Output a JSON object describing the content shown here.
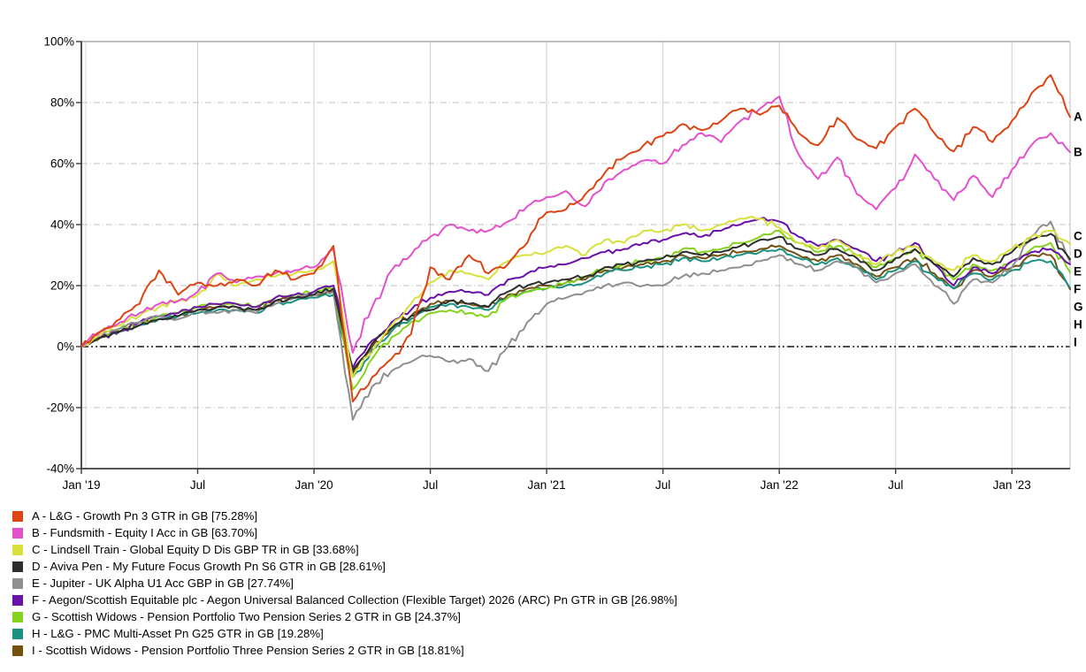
{
  "page": {
    "background": "#ffffff"
  },
  "chart_data": {
    "type": "line",
    "title": "",
    "x_axis": {
      "tick_labels": [
        "Jan '19",
        "Jul",
        "Jan '20",
        "Jul",
        "Jan '21",
        "Jul",
        "Jan '22",
        "Jul",
        "Jan '23"
      ],
      "tick_month_indices": [
        0,
        6,
        12,
        18,
        24,
        30,
        36,
        42,
        48
      ],
      "months_span": 51,
      "start": "Jan 2019",
      "end": "Mar 2023"
    },
    "y_axis": {
      "tick_labels": [
        "100%",
        "80%",
        "60%",
        "40%",
        "20%",
        "0%",
        "-20%",
        "-40%"
      ],
      "tick_values": [
        100,
        80,
        60,
        40,
        20,
        0,
        -20,
        -40
      ],
      "ylim": [
        -40,
        100
      ],
      "unit": "%"
    },
    "zero_line_value": 0,
    "sampling": "monthly cumulative total return since Jan 2019; final point = end of chart (late Mar 2023)",
    "grid": {
      "vertical": "solid light gray at 6-month ticks",
      "horizontal": "dashed light gray each 20%",
      "zero": "black dash-dot"
    },
    "legend_position": "bottom-left",
    "series": [
      {
        "letter": "A",
        "name": "L&G - Growth Pn 3 GTR in GB",
        "final_return_pct": 75.28,
        "legend_label": "A - L&G - Growth Pn 3 GTR in GB [75.28%]",
        "color": "#dc4413",
        "values": [
          0,
          5,
          9,
          14,
          25,
          17,
          21,
          20,
          22,
          20,
          25,
          22,
          24,
          33,
          -18,
          -10,
          -4,
          4,
          26,
          22,
          30,
          24,
          27,
          34,
          44,
          45,
          50,
          57,
          62,
          66,
          69,
          73,
          71,
          74,
          78,
          76,
          79,
          70,
          66,
          75,
          68,
          65,
          72,
          78,
          70,
          64,
          72,
          67,
          74,
          83,
          89,
          75.28
        ]
      },
      {
        "letter": "B",
        "name": "Fundsmith - Equity I Acc in GB",
        "final_return_pct": 63.7,
        "legend_label": "B - Fundsmith - Equity I Acc in GB [63.70%]",
        "color": "#e250cc",
        "values": [
          0,
          5,
          8,
          11,
          14,
          15,
          18,
          24,
          21,
          23,
          24,
          25,
          26,
          32,
          -2,
          13,
          25,
          30,
          36,
          40,
          38,
          38,
          41,
          46,
          49,
          51,
          46,
          54,
          58,
          61,
          60,
          66,
          70,
          67,
          74,
          78,
          82,
          63,
          55,
          62,
          50,
          45,
          52,
          63,
          55,
          48,
          56,
          49,
          58,
          66,
          70,
          63.7
        ]
      },
      {
        "letter": "C",
        "name": "Lindsell Train - Global Equity D Dis GBP TR in GB",
        "final_return_pct": 33.68,
        "legend_label": "C - Lindsell Train - Global Equity D Dis GBP TR in GB [33.68%]",
        "color": "#d8e03c",
        "values": [
          0,
          4,
          7,
          10,
          13,
          15,
          17,
          24,
          20,
          22,
          23,
          24,
          25,
          28,
          -10,
          -2,
          7,
          14,
          21,
          25,
          24,
          22,
          28,
          30,
          31,
          33,
          30,
          35,
          34,
          38,
          38,
          40,
          38,
          40,
          42,
          42,
          39,
          34,
          32,
          35,
          30,
          27,
          31,
          33,
          28,
          25,
          30,
          28,
          32,
          36,
          38,
          33.68
        ]
      },
      {
        "letter": "D",
        "name": "Aviva Pen - My Future Focus Growth Pn S6 GTR in GB",
        "final_return_pct": 28.61,
        "legend_label": "D - Aviva Pen - My Future Focus Growth Pn S6 GTR in GB [28.61%]",
        "color": "#2e2e2e",
        "values": [
          0,
          3,
          5,
          7,
          9,
          10,
          12,
          13,
          13,
          12,
          15,
          16,
          17,
          19,
          -8,
          1,
          6,
          10,
          12,
          15,
          14,
          13,
          18,
          20,
          21,
          22,
          23,
          26,
          27,
          28,
          29,
          31,
          30,
          31,
          33,
          35,
          36,
          32,
          30,
          32,
          29,
          25,
          29,
          32,
          27,
          23,
          29,
          27,
          31,
          35,
          37,
          28.61
        ]
      },
      {
        "letter": "E",
        "name": "Jupiter - UK Alpha U1 Acc GBP in GB",
        "final_return_pct": 27.74,
        "legend_label": "E - Jupiter - UK Alpha U1 Acc GBP in GB [27.74%]",
        "color": "#8f8f8f",
        "values": [
          0,
          4,
          6,
          8,
          10,
          9,
          12,
          11,
          12,
          11,
          14,
          16,
          17,
          18,
          -24,
          -13,
          -8,
          -5,
          -3,
          -5,
          -4,
          -8,
          0,
          8,
          14,
          16,
          18,
          20,
          21,
          20,
          20,
          23,
          24,
          25,
          26,
          28,
          30,
          27,
          25,
          28,
          26,
          21,
          24,
          27,
          20,
          14,
          22,
          21,
          26,
          36,
          41,
          27.74
        ]
      },
      {
        "letter": "F",
        "name": "Aegon/Scottish Equitable plc - Aegon Universal Balanced Collection (Flexible Target) 2026 (ARC) Pn GTR in GB",
        "final_return_pct": 26.98,
        "legend_label": "F - Aegon/Scottish Equitable plc - Aegon Universal Balanced Collection (Flexible Target) 2026 (ARC) Pn GTR in GB [26.98%]",
        "color": "#6a11a8",
        "values": [
          0,
          3,
          5,
          8,
          10,
          11,
          13,
          14,
          14,
          13,
          16,
          17,
          18,
          20,
          -7,
          2,
          8,
          12,
          16,
          18,
          18,
          17,
          22,
          24,
          26,
          27,
          29,
          31,
          32,
          34,
          35,
          37,
          36,
          38,
          40,
          42,
          41,
          36,
          33,
          35,
          32,
          28,
          31,
          34,
          27,
          20,
          26,
          24,
          28,
          31,
          32,
          26.98
        ]
      },
      {
        "letter": "G",
        "name": "Scottish Widows - Pension Portfolio Two Pension Series 2 GTR in GB",
        "final_return_pct": 24.37,
        "legend_label": "G - Scottish Widows - Pension Portfolio Two Pension Series 2 GTR in GB [24.37%]",
        "color": "#84d41c",
        "values": [
          0,
          3,
          6,
          8,
          10,
          11,
          13,
          14,
          14,
          13,
          16,
          17,
          18,
          19,
          -14,
          -4,
          3,
          8,
          11,
          12,
          11,
          10,
          16,
          18,
          19,
          21,
          23,
          26,
          27,
          28,
          29,
          32,
          31,
          32,
          34,
          36,
          38,
          34,
          31,
          33,
          30,
          26,
          29,
          32,
          27,
          22,
          27,
          25,
          28,
          32,
          34,
          24.37
        ]
      },
      {
        "letter": "H",
        "name": "L&G - PMC Multi-Asset Pn G25 GTR in GB",
        "final_return_pct": 19.28,
        "legend_label": "H - L&G - PMC Multi-Asset Pn G25 GTR in GB [19.28%]",
        "color": "#1a9180",
        "values": [
          0,
          3,
          5,
          7,
          9,
          10,
          11,
          12,
          12,
          11,
          14,
          15,
          16,
          17,
          -10,
          -1,
          5,
          9,
          13,
          14,
          13,
          12,
          16,
          18,
          19,
          20,
          21,
          24,
          25,
          26,
          27,
          29,
          28,
          29,
          30,
          31,
          32,
          29,
          27,
          29,
          26,
          22,
          25,
          28,
          23,
          19,
          24,
          22,
          25,
          28,
          28,
          19.28
        ]
      },
      {
        "letter": "I",
        "name": "Scottish Widows - Pension Portfolio Three Pension Series 2 GTR in GB",
        "final_return_pct": 18.81,
        "legend_label": "I - Scottish Widows - Pension Portfolio Three Pension Series 2 GTR in GB [18.81%]",
        "color": "#755110",
        "values": [
          0,
          3,
          5,
          7,
          9,
          10,
          12,
          13,
          13,
          12,
          15,
          16,
          17,
          18,
          -9,
          0,
          6,
          10,
          14,
          15,
          14,
          13,
          17,
          19,
          20,
          21,
          22,
          25,
          26,
          27,
          28,
          30,
          29,
          30,
          31,
          32,
          33,
          30,
          28,
          30,
          27,
          23,
          26,
          29,
          24,
          19,
          25,
          23,
          26,
          30,
          30,
          18.81
        ]
      }
    ]
  }
}
